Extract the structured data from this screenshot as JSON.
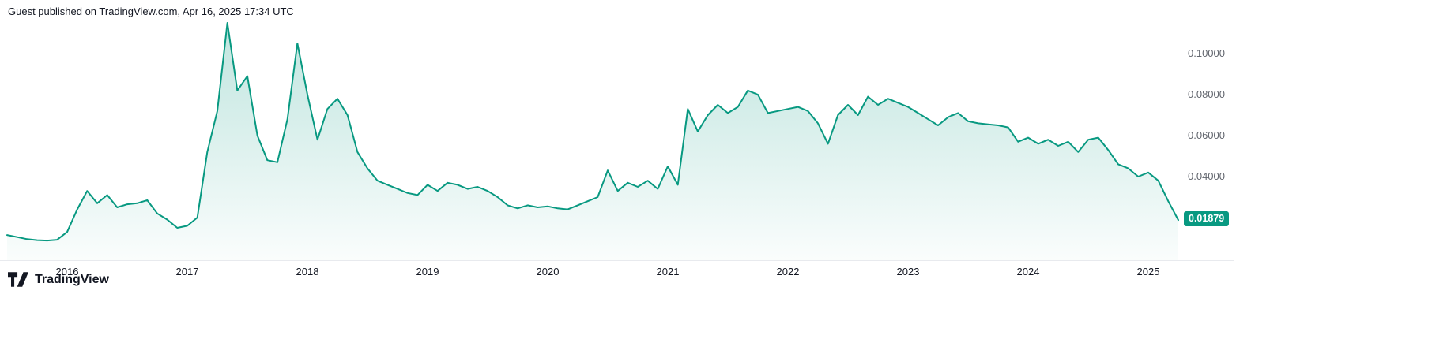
{
  "header": {
    "attribution": "Guest published on TradingView.com, Apr 16, 2025 17:34 UTC"
  },
  "footer": {
    "brand": "TradingView"
  },
  "price_scale": {
    "current_value": "0.01879",
    "ticks": [
      {
        "value": 0.1,
        "label": "0.10000"
      },
      {
        "value": 0.08,
        "label": "0.08000"
      },
      {
        "value": 0.06,
        "label": "0.06000"
      },
      {
        "value": 0.04,
        "label": "0.04000"
      }
    ]
  },
  "x_axis": {
    "labels": [
      "2016",
      "2017",
      "2018",
      "2019",
      "2020",
      "2021",
      "2022",
      "2023",
      "2024",
      "2025"
    ]
  },
  "colors": {
    "line": "#089981",
    "area_top": "rgba(8,153,129,0.26)",
    "area_bottom": "rgba(8,153,129,0.02)",
    "badge": "#089981",
    "baseline": "#e8eaee",
    "axis_text": "#131722",
    "scale_text": "#62666e"
  },
  "chart_data": {
    "type": "area",
    "title": "",
    "xlabel": "",
    "ylabel": "",
    "legend": null,
    "grid": false,
    "ylim": [
      0,
      0.12
    ],
    "x_range": [
      "2015-07",
      "2025-04"
    ],
    "y_ticks": [
      0.04,
      0.06,
      0.08,
      0.1
    ],
    "last_value": 0.01879,
    "dates": [
      "2015-07",
      "2015-08",
      "2015-09",
      "2015-10",
      "2015-11",
      "2015-12",
      "2016-01",
      "2016-02",
      "2016-03",
      "2016-04",
      "2016-05",
      "2016-06",
      "2016-07",
      "2016-08",
      "2016-09",
      "2016-10",
      "2016-11",
      "2016-12",
      "2017-01",
      "2017-02",
      "2017-03",
      "2017-04",
      "2017-05",
      "2017-06",
      "2017-07",
      "2017-08",
      "2017-09",
      "2017-10",
      "2017-11",
      "2017-12",
      "2018-01",
      "2018-02",
      "2018-03",
      "2018-04",
      "2018-05",
      "2018-06",
      "2018-07",
      "2018-08",
      "2018-09",
      "2018-10",
      "2018-11",
      "2018-12",
      "2019-01",
      "2019-02",
      "2019-03",
      "2019-04",
      "2019-05",
      "2019-06",
      "2019-07",
      "2019-08",
      "2019-09",
      "2019-10",
      "2019-11",
      "2019-12",
      "2020-01",
      "2020-02",
      "2020-03",
      "2020-04",
      "2020-05",
      "2020-06",
      "2020-07",
      "2020-08",
      "2020-09",
      "2020-10",
      "2020-11",
      "2020-12",
      "2021-01",
      "2021-02",
      "2021-03",
      "2021-04",
      "2021-05",
      "2021-06",
      "2021-07",
      "2021-08",
      "2021-09",
      "2021-10",
      "2021-11",
      "2021-12",
      "2022-01",
      "2022-02",
      "2022-03",
      "2022-04",
      "2022-05",
      "2022-06",
      "2022-07",
      "2022-08",
      "2022-09",
      "2022-10",
      "2022-11",
      "2022-12",
      "2023-01",
      "2023-02",
      "2023-03",
      "2023-04",
      "2023-05",
      "2023-06",
      "2023-07",
      "2023-08",
      "2023-09",
      "2023-10",
      "2023-11",
      "2023-12",
      "2024-01",
      "2024-02",
      "2024-03",
      "2024-04",
      "2024-05",
      "2024-06",
      "2024-07",
      "2024-08",
      "2024-09",
      "2024-10",
      "2024-11",
      "2024-12",
      "2025-01",
      "2025-02",
      "2025-03",
      "2025-04"
    ],
    "values": [
      0.0115,
      0.0105,
      0.0095,
      0.009,
      0.0088,
      0.0092,
      0.013,
      0.024,
      0.033,
      0.027,
      0.031,
      0.025,
      0.0265,
      0.027,
      0.0285,
      0.022,
      0.019,
      0.015,
      0.016,
      0.02,
      0.052,
      0.072,
      0.115,
      0.082,
      0.089,
      0.06,
      0.048,
      0.047,
      0.068,
      0.105,
      0.08,
      0.058,
      0.073,
      0.078,
      0.07,
      0.052,
      0.044,
      0.038,
      0.036,
      0.034,
      0.032,
      0.031,
      0.036,
      0.033,
      0.037,
      0.036,
      0.034,
      0.035,
      0.033,
      0.03,
      0.026,
      0.0245,
      0.026,
      0.025,
      0.0255,
      0.0245,
      0.024,
      0.026,
      0.028,
      0.03,
      0.043,
      0.033,
      0.037,
      0.035,
      0.038,
      0.034,
      0.045,
      0.036,
      0.073,
      0.062,
      0.07,
      0.075,
      0.071,
      0.074,
      0.082,
      0.08,
      0.071,
      0.072,
      0.073,
      0.074,
      0.072,
      0.066,
      0.056,
      0.07,
      0.075,
      0.07,
      0.079,
      0.075,
      0.078,
      0.076,
      0.074,
      0.071,
      0.068,
      0.065,
      0.069,
      0.071,
      0.067,
      0.066,
      0.0655,
      0.065,
      0.064,
      0.057,
      0.059,
      0.056,
      0.058,
      0.055,
      0.057,
      0.052,
      0.058,
      0.059,
      0.053,
      0.046,
      0.044,
      0.04,
      0.042,
      0.038,
      0.028,
      0.01879
    ]
  }
}
